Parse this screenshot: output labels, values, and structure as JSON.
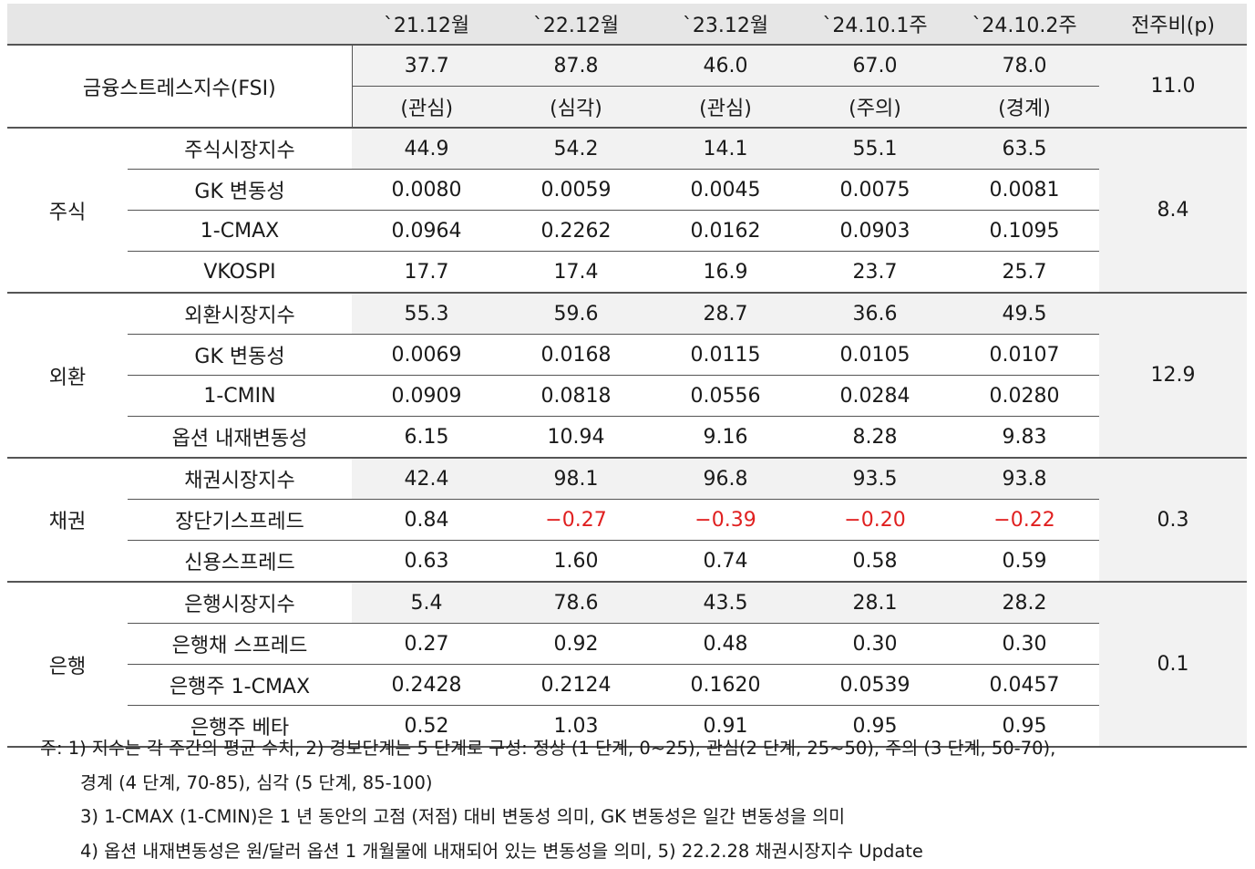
{
  "header": {
    "cols": [
      "`21.12월",
      "`22.12월",
      "`23.12월",
      "`24.10.1주",
      "`24.10.2주",
      "전주비(p)"
    ]
  },
  "fsi": {
    "label": "금융스트레스지수(FSI)",
    "values": [
      "37.7",
      "87.8",
      "46.0",
      "67.0",
      "78.0"
    ],
    "levels": [
      "(관심)",
      "(심각)",
      "(관심)",
      "(주의)",
      "(경계)"
    ],
    "change": "11.0"
  },
  "sections": [
    {
      "name": "주식",
      "change": "8.4",
      "rows": [
        {
          "label": "주식시장지수",
          "values": [
            "44.9",
            "54.2",
            "14.1",
            "55.1",
            "63.5"
          ]
        },
        {
          "label": "GK 변동성",
          "values": [
            "0.0080",
            "0.0059",
            "0.0045",
            "0.0075",
            "0.0081"
          ]
        },
        {
          "label": "1-CMAX",
          "values": [
            "0.0964",
            "0.2262",
            "0.0162",
            "0.0903",
            "0.1095"
          ]
        },
        {
          "label": "VKOSPI",
          "values": [
            "17.7",
            "17.4",
            "16.9",
            "23.7",
            "25.7"
          ]
        }
      ]
    },
    {
      "name": "외환",
      "change": "12.9",
      "rows": [
        {
          "label": "외환시장지수",
          "values": [
            "55.3",
            "59.6",
            "28.7",
            "36.6",
            "49.5"
          ]
        },
        {
          "label": "GK 변동성",
          "values": [
            "0.0069",
            "0.0168",
            "0.0115",
            "0.0105",
            "0.0107"
          ]
        },
        {
          "label": "1-CMIN",
          "values": [
            "0.0909",
            "0.0818",
            "0.0556",
            "0.0284",
            "0.0280"
          ]
        },
        {
          "label": "옵션 내재변동성",
          "values": [
            "6.15",
            "10.94",
            "9.16",
            "8.28",
            "9.83"
          ]
        }
      ]
    },
    {
      "name": "채권",
      "change": "0.3",
      "rows": [
        {
          "label": "채권시장지수",
          "values": [
            "42.4",
            "98.1",
            "96.8",
            "93.5",
            "93.8"
          ]
        },
        {
          "label": "장단기스프레드",
          "values": [
            "0.84",
            "−0.27",
            "−0.39",
            "−0.20",
            "−0.22"
          ]
        },
        {
          "label": "신용스프레드",
          "values": [
            "0.63",
            "1.60",
            "0.74",
            "0.58",
            "0.59"
          ]
        }
      ]
    },
    {
      "name": "은행",
      "change": "0.1",
      "rows": [
        {
          "label": "은행시장지수",
          "values": [
            "5.4",
            "78.6",
            "43.5",
            "28.1",
            "28.2"
          ]
        },
        {
          "label": "은행채 스프레드",
          "values": [
            "0.27",
            "0.92",
            "0.48",
            "0.30",
            "0.30"
          ]
        },
        {
          "label": "은행주 1-CMAX",
          "values": [
            "0.2428",
            "0.2124",
            "0.1620",
            "0.0539",
            "0.0457"
          ]
        },
        {
          "label": "은행주 베타",
          "values": [
            "0.52",
            "1.03",
            "0.91",
            "0.95",
            "0.95"
          ]
        }
      ]
    }
  ],
  "colors": {
    "negative": "#e02020",
    "shade": "#f2f2f2",
    "header_bg": "#e6e6e6"
  },
  "notes": [
    "주: 1) 지수는 각 주간의 평균 수치, 2) 경보단계는 5 단계로 구성: 정상 (1 단계, 0~25), 관심(2 단계, 25~50), 주의 (3 단계, 50-70),",
    "경계 (4 단계, 70-85), 심각 (5 단계, 85-100)",
    "3) 1-CMAX (1-CMIN)은 1 년 동안의 고점 (저점) 대비 변동성 의미, GK 변동성은 일간 변동성을 의미",
    "4) 옵션 내재변동성은 원/달러 옵션 1 개월물에 내재되어 있는 변동성을 의미, 5) 22.2.28 채권시장지수 Update"
  ]
}
